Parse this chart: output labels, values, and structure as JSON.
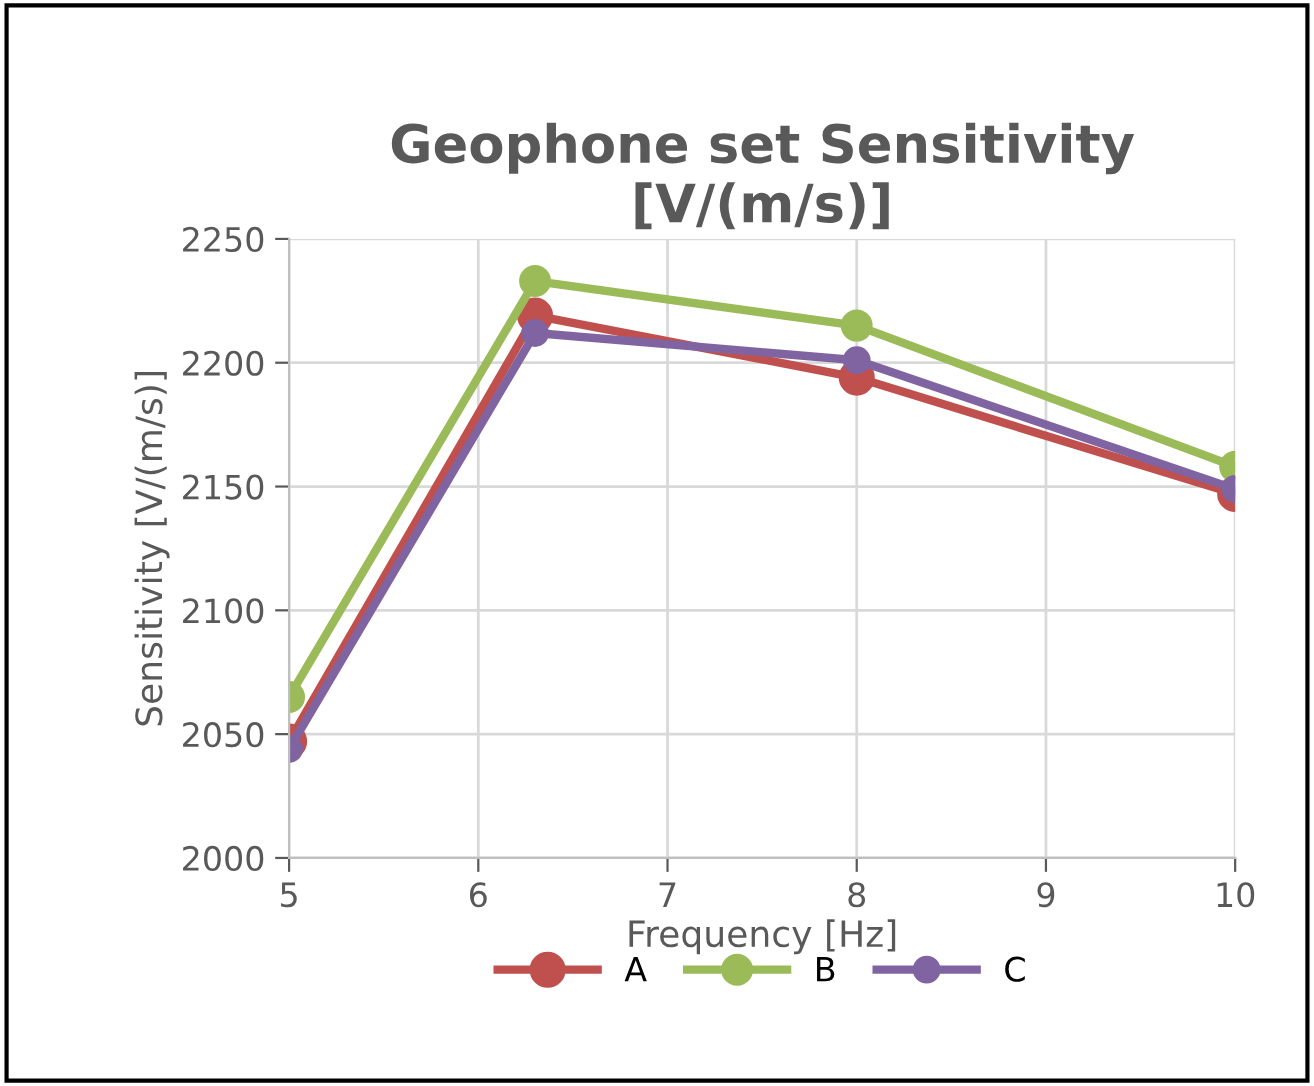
{
  "chart_data": {
    "type": "line",
    "title": "Geophone set Sensitivity\n[V/(m/s)]",
    "xlabel": "Frequency [Hz]",
    "ylabel": "Sensitivity [V/(m/s)]",
    "x": [
      5,
      6.3,
      8,
      10
    ],
    "series": [
      {
        "name": "A",
        "color": "#c0504d",
        "values": [
          2047,
          2219,
          2194,
          2147
        ]
      },
      {
        "name": "B",
        "color": "#9bbb59",
        "values": [
          2065,
          2233,
          2215,
          2158
        ]
      },
      {
        "name": "C",
        "color": "#8064a2",
        "values": [
          2044,
          2212,
          2201,
          2149
        ]
      }
    ],
    "xlim": [
      5,
      10
    ],
    "xticks": [
      5,
      6,
      7,
      8,
      9,
      10
    ],
    "ylim": [
      2000,
      2250
    ],
    "yticks": [
      2000,
      2050,
      2100,
      2150,
      2200,
      2250
    ],
    "grid": true,
    "legend": "bottom",
    "marker": "circle",
    "line_style": "solid"
  }
}
